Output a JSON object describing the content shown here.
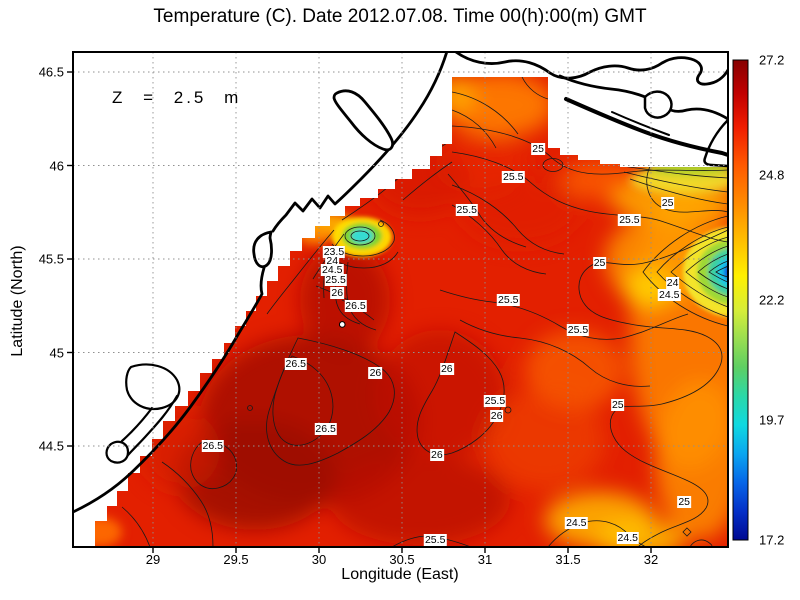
{
  "title": "Temperature (C). Date 2012.07.08. Time 00(h):00(m) GMT",
  "annotation": "Z = 2.5 m",
  "axes": {
    "xlabel": "Longitude (East)",
    "ylabel": "Latitude (North)"
  },
  "colors": {
    "sea_base": "#e32000",
    "land": "#ffffff",
    "coast": "#000000",
    "grid": "#909090",
    "contour": "#1a1a1a"
  },
  "chart_data": {
    "type": "heatmap",
    "subtype": "filled contour map with labeled isotherms",
    "title": "Temperature (C). Date 2012.07.08. Time 00(h):00(m) GMT",
    "depth_annotation": "Z = 2.5 m",
    "units": "C",
    "xlabel": "Longitude (East)",
    "ylabel": "Latitude (North)",
    "x_range": [
      28.52,
      32.46
    ],
    "y_range": [
      43.97,
      46.61
    ],
    "xticks": [
      29,
      29.5,
      30,
      30.5,
      31,
      31.5,
      32
    ],
    "yticks": [
      46.5,
      46,
      45.5,
      45,
      44.5
    ],
    "grid": true,
    "colorbar": {
      "colormap": "jet",
      "min": 17.2,
      "max": 27.2,
      "ticks": [
        27.2,
        24.8,
        22.2,
        19.7,
        17.2
      ],
      "position": "right"
    },
    "contour_levels": [
      23.5,
      24,
      24.5,
      25,
      25.5,
      26,
      26.5
    ],
    "contour_labels": [
      {
        "value": "25",
        "lon": 31.32,
        "lat": 46.09
      },
      {
        "value": "25.5",
        "lon": 31.17,
        "lat": 45.94
      },
      {
        "value": "25.5",
        "lon": 30.89,
        "lat": 45.76
      },
      {
        "value": "25.5",
        "lon": 31.87,
        "lat": 45.71
      },
      {
        "value": "25",
        "lon": 32.1,
        "lat": 45.8
      },
      {
        "value": "25",
        "lon": 31.69,
        "lat": 45.48
      },
      {
        "value": "25.5",
        "lon": 31.14,
        "lat": 45.28
      },
      {
        "value": "25.5",
        "lon": 31.56,
        "lat": 45.12
      },
      {
        "value": "24",
        "lon": 32.13,
        "lat": 45.37
      },
      {
        "value": "24.5",
        "lon": 32.11,
        "lat": 45.31
      },
      {
        "value": "23.5",
        "lon": 30.09,
        "lat": 45.54
      },
      {
        "value": "24",
        "lon": 30.08,
        "lat": 45.49
      },
      {
        "value": "24.5",
        "lon": 30.08,
        "lat": 45.44
      },
      {
        "value": "25.5",
        "lon": 30.1,
        "lat": 45.39
      },
      {
        "value": "26",
        "lon": 30.11,
        "lat": 45.32
      },
      {
        "value": "26.5",
        "lon": 30.22,
        "lat": 45.25
      },
      {
        "value": "26.5",
        "lon": 29.86,
        "lat": 44.94
      },
      {
        "value": "26",
        "lon": 30.34,
        "lat": 44.89
      },
      {
        "value": "26.5",
        "lon": 30.04,
        "lat": 44.59
      },
      {
        "value": "26.5",
        "lon": 29.36,
        "lat": 44.5
      },
      {
        "value": "26",
        "lon": 30.77,
        "lat": 44.91
      },
      {
        "value": "25.5",
        "lon": 31.06,
        "lat": 44.74
      },
      {
        "value": "26",
        "lon": 31.07,
        "lat": 44.66
      },
      {
        "value": "26",
        "lon": 30.71,
        "lat": 44.45
      },
      {
        "value": "25",
        "lon": 31.8,
        "lat": 44.72
      },
      {
        "value": "25",
        "lon": 32.2,
        "lat": 44.2
      },
      {
        "value": "24.5",
        "lon": 31.55,
        "lat": 44.09
      },
      {
        "value": "24.5",
        "lon": 31.86,
        "lat": 44.01
      },
      {
        "value": "25.5",
        "lon": 30.7,
        "lat": 44.0
      }
    ],
    "marker": {
      "lon": 30.14,
      "lat": 45.15,
      "symbol": "white-dot"
    },
    "features": [
      "warm core water >26.5 C in the south-west",
      "small cold patch ~23.5 C near 30.1E 45.55N",
      "cold eddy ~17-24 C at the eastern edge near 45.3N",
      "cooler upwelling band along the north-east corner"
    ]
  }
}
